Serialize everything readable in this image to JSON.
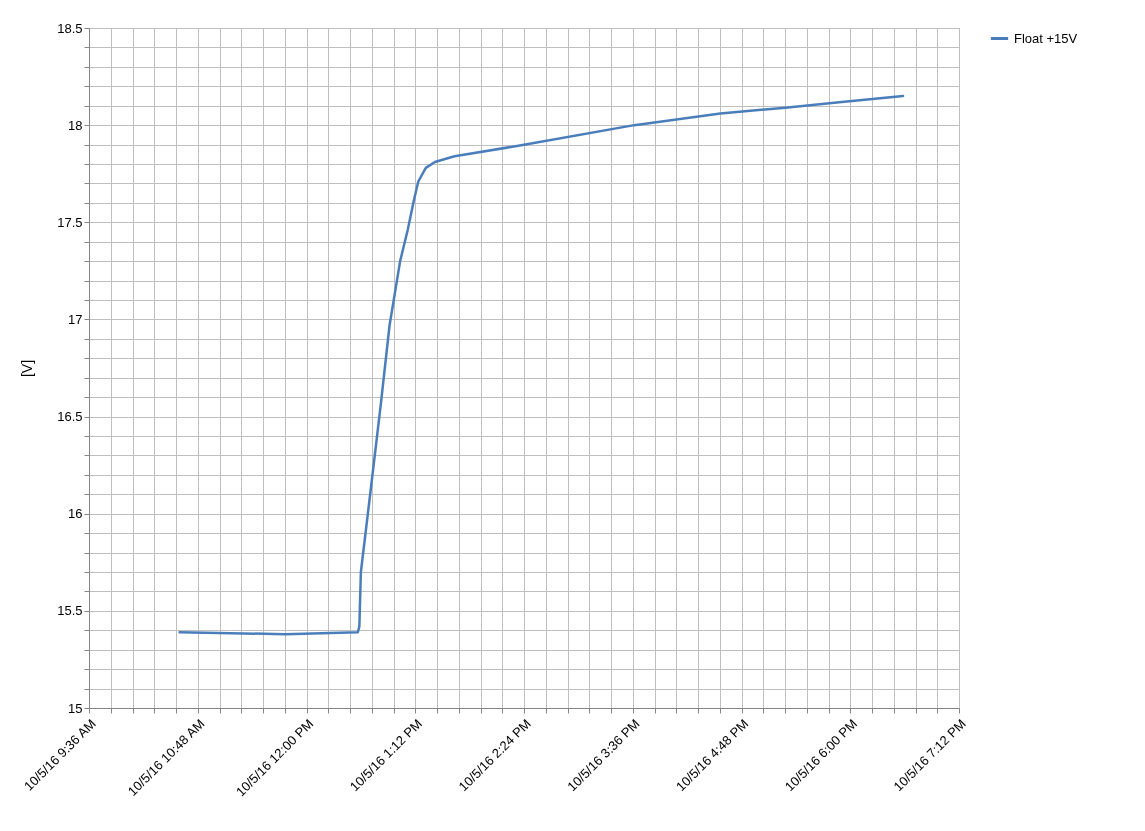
{
  "chart_data": {
    "type": "line",
    "ylabel": "[V]",
    "x": [
      "--10-05T10:36",
      "--10-05T11:46",
      "--10-05T12:34",
      "--10-05T12:35",
      "--10-05T12:36",
      "--10-05T12:42",
      "--10-05T12:49",
      "--10-05T12:55",
      "--10-05T13:02",
      "--10-05T13:07",
      "--10-05T13:11",
      "--10-05T13:14",
      "--10-05T13:19",
      "--10-05T13:25",
      "--10-05T13:38",
      "--10-05T14:25",
      "--10-05T15:37",
      "--10-05T16:34",
      "--10-05T17:17",
      "--10-05T17:56",
      "--10-05T18:35"
    ],
    "series": [
      {
        "name": "Float +15V",
        "color": "#4a7ebb",
        "values": [
          15.39,
          15.38,
          15.39,
          15.42,
          15.7,
          16.09,
          16.55,
          16.97,
          17.3,
          17.46,
          17.61,
          17.71,
          17.78,
          17.81,
          17.84,
          17.9,
          18.0,
          18.06,
          18.09,
          18.12,
          18.15
        ]
      }
    ],
    "xlim": [
      "--10-05T09:36",
      "--10-05T19:12"
    ],
    "xticks": [
      {
        "value": "--10-05T09:36",
        "label": "10/5/16 9:36 AM"
      },
      {
        "value": "--10-05T09:50:24",
        "label": null
      },
      {
        "value": "--10-05T10:04:48",
        "label": null
      },
      {
        "value": "--10-05T10:19:12",
        "label": null
      },
      {
        "value": "--10-05T10:33:36",
        "label": null
      },
      {
        "value": "--10-05T10:48",
        "label": "10/5/16 10:48 AM"
      },
      {
        "value": "--10-05T11:02:24",
        "label": null
      },
      {
        "value": "--10-05T11:16:48",
        "label": null
      },
      {
        "value": "--10-05T11:31:12",
        "label": null
      },
      {
        "value": "--10-05T11:45:36",
        "label": null
      },
      {
        "value": "--10-05T12:00",
        "label": "10/5/16 12:00 PM"
      },
      {
        "value": "--10-05T12:14:24",
        "label": null
      },
      {
        "value": "--10-05T12:28:48",
        "label": null
      },
      {
        "value": "--10-05T12:43:12",
        "label": null
      },
      {
        "value": "--10-05T12:57:36",
        "label": null
      },
      {
        "value": "--10-05T13:12",
        "label": "10/5/16 1:12 PM"
      },
      {
        "value": "--10-05T13:26:24",
        "label": null
      },
      {
        "value": "--10-05T13:40:48",
        "label": null
      },
      {
        "value": "--10-05T13:55:12",
        "label": null
      },
      {
        "value": "--10-05T14:09:36",
        "label": null
      },
      {
        "value": "--10-05T14:24",
        "label": "10/5/16 2:24 PM"
      },
      {
        "value": "--10-05T14:38:24",
        "label": null
      },
      {
        "value": "--10-05T14:52:48",
        "label": null
      },
      {
        "value": "--10-05T15:07:12",
        "label": null
      },
      {
        "value": "--10-05T15:21:36",
        "label": null
      },
      {
        "value": "--10-05T15:36",
        "label": "10/5/16 3:36 PM"
      },
      {
        "value": "--10-05T15:50:24",
        "label": null
      },
      {
        "value": "--10-05T16:04:48",
        "label": null
      },
      {
        "value": "--10-05T16:19:12",
        "label": null
      },
      {
        "value": "--10-05T16:33:36",
        "label": null
      },
      {
        "value": "--10-05T16:48",
        "label": "10/5/16 4:48 PM"
      },
      {
        "value": "--10-05T17:02:24",
        "label": null
      },
      {
        "value": "--10-05T17:16:48",
        "label": null
      },
      {
        "value": "--10-05T17:31:12",
        "label": null
      },
      {
        "value": "--10-05T17:45:36",
        "label": null
      },
      {
        "value": "--10-05T18:00",
        "label": "10/5/16 6:00 PM"
      },
      {
        "value": "--10-05T18:14:24",
        "label": null
      },
      {
        "value": "--10-05T18:28:48",
        "label": null
      },
      {
        "value": "--10-05T18:43:12",
        "label": null
      },
      {
        "value": "--10-05T18:57:36",
        "label": null
      },
      {
        "value": "--10-05T19:12",
        "label": "10/5/16 7:12 PM"
      }
    ],
    "ylim": [
      15,
      18.5
    ],
    "yticks": [
      15,
      {
        "value": 15.1,
        "label": null
      },
      {
        "value": 15.2,
        "label": null
      },
      {
        "value": 15.3,
        "label": null
      },
      {
        "value": 15.4,
        "label": null
      },
      15.5,
      {
        "value": 15.6,
        "label": null
      },
      {
        "value": 15.7,
        "label": null
      },
      {
        "value": 15.8,
        "label": null
      },
      {
        "value": 15.9,
        "label": null
      },
      16,
      {
        "value": 16.1,
        "label": null
      },
      {
        "value": 16.2,
        "label": null
      },
      {
        "value": 16.3,
        "label": null
      },
      {
        "value": 16.4,
        "label": null
      },
      16.5,
      {
        "value": 16.6,
        "label": null
      },
      {
        "value": 16.7,
        "label": null
      },
      {
        "value": 16.8,
        "label": null
      },
      {
        "value": 16.9,
        "label": null
      },
      17,
      {
        "value": 17.1,
        "label": null
      },
      {
        "value": 17.2,
        "label": null
      },
      {
        "value": 17.3,
        "label": null
      },
      {
        "value": 17.4,
        "label": null
      },
      17.5,
      {
        "value": 17.6,
        "label": null
      },
      {
        "value": 17.7,
        "label": null
      },
      {
        "value": 17.8,
        "label": null
      },
      {
        "value": 17.9,
        "label": null
      },
      18,
      {
        "value": 18.1,
        "label": null
      },
      {
        "value": 18.2,
        "label": null
      },
      {
        "value": 18.3,
        "label": null
      },
      {
        "value": 18.4,
        "label": null
      },
      18.5
    ],
    "grid": true,
    "legend": "right",
    "marker": "none",
    "line_style": "solid"
  }
}
